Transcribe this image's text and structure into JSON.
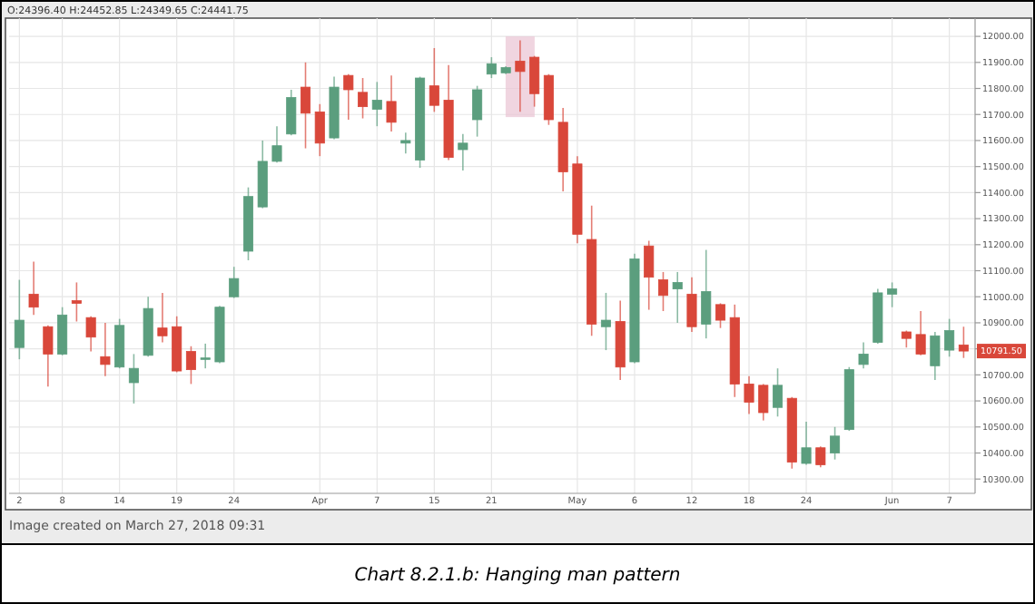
{
  "chart_data": {
    "type": "candlestick",
    "title": "Chart 8.2.1.b: Hanging man pattern",
    "annotations": [
      "O:24396.40 H:24452.85 L:24349.65 C:24441.75",
      "Image created on March 27, 2018 09:31",
      "10791.50"
    ],
    "categories": [
      "2",
      null,
      null,
      "8",
      null,
      null,
      null,
      "14",
      null,
      null,
      null,
      "19",
      null,
      null,
      null,
      "24",
      null,
      null,
      null,
      null,
      null,
      "Apr",
      null,
      null,
      null,
      "7",
      null,
      null,
      null,
      "15",
      null,
      null,
      null,
      "21",
      null,
      null,
      null,
      null,
      null,
      "May",
      null,
      null,
      null,
      "6",
      null,
      null,
      null,
      "12",
      null,
      null,
      null,
      "18",
      null,
      null,
      null,
      "24",
      null,
      null,
      null,
      null,
      null,
      "Jun",
      null,
      null,
      null,
      "7",
      null
    ],
    "ohlc": [
      [
        10805,
        11065,
        10760,
        10910
      ],
      [
        11010,
        11135,
        10930,
        10960
      ],
      [
        10885,
        10890,
        10655,
        10780
      ],
      [
        10780,
        10960,
        10775,
        10930
      ],
      [
        10985,
        11055,
        10905,
        10975
      ],
      [
        10920,
        10925,
        10790,
        10845
      ],
      [
        10770,
        10900,
        10695,
        10740
      ],
      [
        10730,
        10915,
        10725,
        10890
      ],
      [
        10670,
        10780,
        10590,
        10725
      ],
      [
        10775,
        11000,
        10770,
        10955
      ],
      [
        10880,
        11015,
        10825,
        10850
      ],
      [
        10885,
        10925,
        10710,
        10715
      ],
      [
        10790,
        10810,
        10665,
        10720
      ],
      [
        10760,
        10820,
        10725,
        10765
      ],
      [
        10750,
        10965,
        10745,
        10960
      ],
      [
        11000,
        11115,
        10995,
        11070
      ],
      [
        11175,
        11420,
        11140,
        11385
      ],
      [
        11345,
        11600,
        11340,
        11520
      ],
      [
        11520,
        11655,
        11515,
        11580
      ],
      [
        11625,
        11795,
        11620,
        11765
      ],
      [
        11805,
        11900,
        11570,
        11705
      ],
      [
        11710,
        11740,
        11540,
        11590
      ],
      [
        11610,
        11845,
        11605,
        11805
      ],
      [
        11850,
        11855,
        11680,
        11795
      ],
      [
        11785,
        11840,
        11685,
        11730
      ],
      [
        11720,
        11825,
        11655,
        11755
      ],
      [
        11750,
        11850,
        11635,
        11670
      ],
      [
        11590,
        11630,
        11550,
        11600
      ],
      [
        11525,
        11845,
        11495,
        11840
      ],
      [
        11810,
        11955,
        11710,
        11735
      ],
      [
        11755,
        11890,
        11525,
        11535
      ],
      [
        11565,
        11625,
        11485,
        11590
      ],
      [
        11680,
        11810,
        11615,
        11795
      ],
      [
        11855,
        11920,
        11840,
        11895
      ],
      [
        11860,
        11885,
        11855,
        11880
      ],
      [
        11905,
        11985,
        11710,
        11865
      ],
      [
        11920,
        11925,
        11730,
        11780
      ],
      [
        11850,
        11855,
        11660,
        11680
      ],
      [
        11670,
        11725,
        11405,
        11480
      ],
      [
        11510,
        11540,
        11205,
        11240
      ],
      [
        11220,
        11350,
        10850,
        10895
      ],
      [
        10885,
        11015,
        10795,
        10910
      ],
      [
        10905,
        10985,
        10680,
        10730
      ],
      [
        10750,
        11165,
        10745,
        11145
      ],
      [
        11195,
        11215,
        10950,
        11075
      ],
      [
        11065,
        11095,
        10945,
        11005
      ],
      [
        11030,
        11095,
        10900,
        11055
      ],
      [
        11010,
        11075,
        10865,
        10885
      ],
      [
        10895,
        11180,
        10840,
        11020
      ],
      [
        10970,
        10975,
        10880,
        10910
      ],
      [
        10920,
        10970,
        10615,
        10665
      ],
      [
        10665,
        10695,
        10550,
        10595
      ],
      [
        10660,
        10665,
        10525,
        10555
      ],
      [
        10575,
        10725,
        10540,
        10660
      ],
      [
        10610,
        10615,
        10340,
        10365
      ],
      [
        10360,
        10520,
        10355,
        10420
      ],
      [
        10420,
        10425,
        10345,
        10355
      ],
      [
        10400,
        10500,
        10375,
        10465
      ],
      [
        10490,
        10730,
        10485,
        10720
      ],
      [
        10740,
        10825,
        10725,
        10780
      ],
      [
        10825,
        11030,
        10820,
        11015
      ],
      [
        11010,
        11055,
        10960,
        11030
      ],
      [
        10865,
        10870,
        10805,
        10840
      ],
      [
        10855,
        10945,
        10775,
        10780
      ],
      [
        10735,
        10865,
        10680,
        10850
      ],
      [
        10795,
        10915,
        10770,
        10870
      ],
      [
        10815,
        10885,
        10765,
        10791.5
      ]
    ],
    "colors": [
      "#5b9e7e",
      "#d9473a",
      "#d9473a",
      "#5b9e7e",
      "#d9473a",
      "#d9473a",
      "#d9473a",
      "#5b9e7e",
      "#5b9e7e",
      "#5b9e7e",
      "#d9473a",
      "#d9473a",
      "#d9473a",
      "#5b9e7e",
      "#5b9e7e",
      "#5b9e7e",
      "#5b9e7e",
      "#5b9e7e",
      "#5b9e7e",
      "#5b9e7e",
      "#d9473a",
      "#d9473a",
      "#5b9e7e",
      "#d9473a",
      "#d9473a",
      "#5b9e7e",
      "#d9473a",
      "#5b9e7e",
      "#5b9e7e",
      "#d9473a",
      "#d9473a",
      "#5b9e7e",
      "#5b9e7e",
      "#5b9e7e",
      "#5b9e7e",
      "#d9473a",
      "#d9473a",
      "#d9473a",
      "#d9473a",
      "#d9473a",
      "#d9473a",
      "#5b9e7e",
      "#d9473a",
      "#5b9e7e",
      "#d9473a",
      "#d9473a",
      "#5b9e7e",
      "#d9473a",
      "#5b9e7e",
      "#d9473a",
      "#d9473a",
      "#d9473a",
      "#d9473a",
      "#5b9e7e",
      "#d9473a",
      "#5b9e7e",
      "#d9473a",
      "#5b9e7e",
      "#5b9e7e",
      "#5b9e7e",
      "#5b9e7e",
      "#5b9e7e",
      "#d9473a",
      "#d9473a",
      "#5b9e7e",
      "#5b9e7e",
      "#d9473a"
    ],
    "ylim": [
      10245,
      12070
    ],
    "yticks": [
      {
        "value": 10300,
        "label": "10300.00"
      },
      {
        "value": 10400,
        "label": "10400.00"
      },
      {
        "value": 10500,
        "label": "10500.00"
      },
      {
        "value": 10600,
        "label": "10600.00"
      },
      {
        "value": 10700,
        "label": "10700.00"
      },
      {
        "value": 10800,
        "label": null
      },
      {
        "value": 10900,
        "label": "10900.00"
      },
      {
        "value": 11000,
        "label": "11000.00"
      },
      {
        "value": 11100,
        "label": "11100.00"
      },
      {
        "value": 11200,
        "label": "11200.00"
      },
      {
        "value": 11300,
        "label": "11300.00"
      },
      {
        "value": 11400,
        "label": "11400.00"
      },
      {
        "value": 11500,
        "label": "11500.00"
      },
      {
        "value": 11600,
        "label": "11600.00"
      },
      {
        "value": 11700,
        "label": "11700.00"
      },
      {
        "value": 11800,
        "label": "11800.00"
      },
      {
        "value": 11900,
        "label": "11900.00"
      },
      {
        "value": 12000,
        "label": "12000.00"
      }
    ],
    "grid": true
  }
}
